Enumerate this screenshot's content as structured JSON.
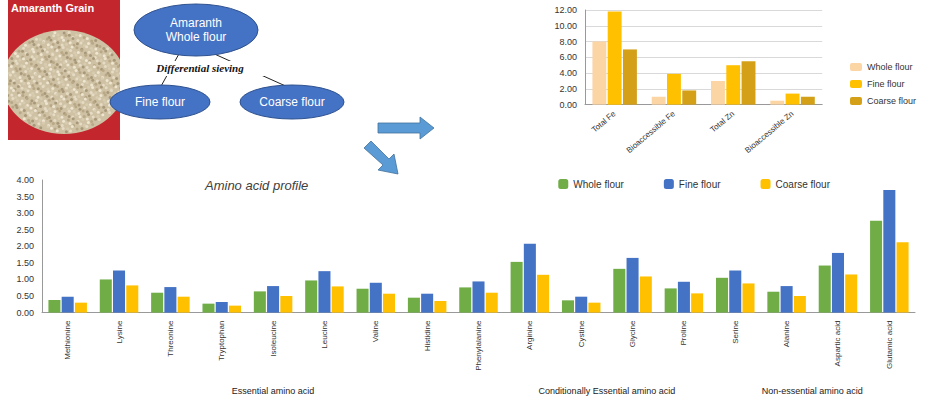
{
  "photo": {
    "label": "Amaranth Grain"
  },
  "diagram": {
    "nodes": [
      {
        "label": "Amaranth Whole flour"
      },
      {
        "label": "Fine flour"
      },
      {
        "label": "Coarse flour"
      }
    ],
    "edge_label": "Differential sieving"
  },
  "chart_data": [
    {
      "type": "bar",
      "categories": [
        "Total Fe",
        "Bioaccessible Fe",
        "Total Zn",
        "Bioaccessible Zn"
      ],
      "series": [
        {
          "name": "Whole flour",
          "color": "#fcd5a5",
          "values": [
            8.0,
            1.0,
            3.0,
            0.5
          ]
        },
        {
          "name": "Fine flour",
          "color": "#ffc000",
          "values": [
            11.8,
            3.9,
            5.0,
            1.4
          ]
        },
        {
          "name": "Coarse flour",
          "color": "#d4a017",
          "values": [
            7.0,
            1.8,
            5.5,
            1.0
          ]
        }
      ],
      "ylim": [
        0,
        12
      ],
      "yticks": [
        {
          "value": 0,
          "label": "0.00"
        },
        {
          "value": 2,
          "label": "2.00"
        },
        {
          "value": 4,
          "label": "4.00"
        },
        {
          "value": 6,
          "label": "6.00"
        },
        {
          "value": 8,
          "label": "8.00"
        },
        {
          "value": 10,
          "label": "10.00"
        },
        {
          "value": 12,
          "label": "12.00"
        }
      ],
      "grid": true,
      "legend": "right"
    },
    {
      "type": "bar",
      "title": "Amino acid profile",
      "categories": [
        "Methionine",
        "Lysine",
        "Threonine",
        "Tryptophan",
        "Isoleucine",
        "Leucine",
        "Valine",
        "Histidine",
        "Phenylalanine",
        "Arginine",
        "Cystine",
        "Glycine",
        "Proline",
        "Serine",
        "Alanine",
        "Aspartic acid",
        "Glutamic acid"
      ],
      "series": [
        {
          "name": "Whole flour",
          "color": "#70ad47",
          "values": [
            0.38,
            1.0,
            0.6,
            0.27,
            0.64,
            0.97,
            0.72,
            0.45,
            0.76,
            1.53,
            0.37,
            1.32,
            0.73,
            1.05,
            0.63,
            1.42,
            2.77
          ]
        },
        {
          "name": "Fine flour",
          "color": "#4472c4",
          "values": [
            0.48,
            1.27,
            0.77,
            0.32,
            0.8,
            1.25,
            0.9,
            0.57,
            0.94,
            2.08,
            0.48,
            1.65,
            0.93,
            1.27,
            0.8,
            1.8,
            3.7
          ]
        },
        {
          "name": "Coarse flour",
          "color": "#ffc000",
          "values": [
            0.3,
            0.82,
            0.48,
            0.21,
            0.5,
            0.79,
            0.57,
            0.35,
            0.6,
            1.14,
            0.3,
            1.09,
            0.58,
            0.88,
            0.5,
            1.15,
            2.12
          ]
        }
      ],
      "groups": [
        {
          "label": "Essential amino acid",
          "categories": [
            "Methionine",
            "Lysine",
            "Threonine",
            "Tryptophan",
            "Isoleucine",
            "Leucine",
            "Valine",
            "Histidine",
            "Phenylalanine"
          ]
        },
        {
          "label": "Conditionally Essential amino acid",
          "categories": [
            "Arginine",
            "Cystine",
            "Glycine",
            "Proline"
          ]
        },
        {
          "label": "Non-essential amino acid",
          "categories": [
            "Serine",
            "Alanine",
            "Aspartic acid",
            "Glutamic acid"
          ]
        }
      ],
      "ylim": [
        0,
        4
      ],
      "yticks": [
        {
          "value": 0,
          "label": "0.00"
        },
        {
          "value": 0.5,
          "label": "0.50"
        },
        {
          "value": 1,
          "label": "1.00"
        },
        {
          "value": 1.5,
          "label": "1.50"
        },
        {
          "value": 2,
          "label": "2.00"
        },
        {
          "value": 2.5,
          "label": "2.50"
        },
        {
          "value": 3,
          "label": "3.00"
        },
        {
          "value": 3.5,
          "label": "3.50"
        },
        {
          "value": 4,
          "label": "4.00"
        }
      ],
      "grid": false,
      "legend": "top-right"
    }
  ]
}
